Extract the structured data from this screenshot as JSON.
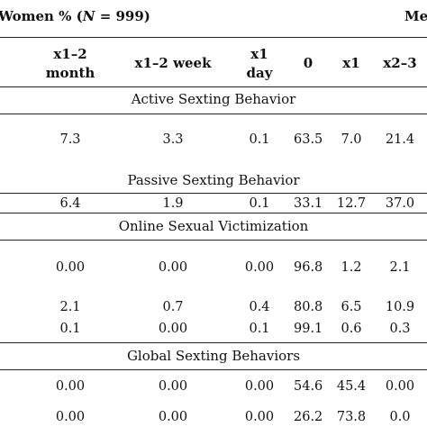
{
  "group_headers": {
    "women": "Women % (",
    "women_n": "N",
    "women_count": " = 999)",
    "men_partial": "Me"
  },
  "columns": [
    {
      "line1": "x1–2",
      "line2": "month"
    },
    {
      "line1": "x1–2 week",
      "line2": ""
    },
    {
      "line1": "x1",
      "line2": "day"
    },
    {
      "line1": "0",
      "line2": ""
    },
    {
      "line1": "x1",
      "line2": ""
    },
    {
      "line1": "x2–3",
      "line2": ""
    }
  ],
  "sections": [
    {
      "title": "Active Sexting Behavior",
      "rows": [
        [
          "7.3",
          "3.3",
          "0.1",
          "63.5",
          "7.0",
          "21.4"
        ]
      ]
    },
    {
      "title": "Passive Sexting Behavior",
      "rows": [
        [
          "6.4",
          "1.9",
          "0.1",
          "33.1",
          "12.7",
          "37.0"
        ]
      ]
    },
    {
      "title": "Online Sexual Victimization",
      "rows": [
        [
          "0.00",
          "0.00",
          "0.00",
          "96.8",
          "1.2",
          "2.1"
        ],
        [
          "2.1",
          "0.7",
          "0.4",
          "80.8",
          "6.5",
          "10.9"
        ],
        [
          "0.1",
          "0.00",
          "0.1",
          "99.1",
          "0.6",
          "0.3"
        ]
      ]
    },
    {
      "title": "Global Sexting Behaviors",
      "rows": [
        [
          "0.00",
          "0.00",
          "0.00",
          "54.6",
          "45.4",
          "0.00"
        ],
        [
          "0.00",
          "0.00",
          "0.00",
          "26.2",
          "73.8",
          "0.0"
        ]
      ]
    }
  ]
}
